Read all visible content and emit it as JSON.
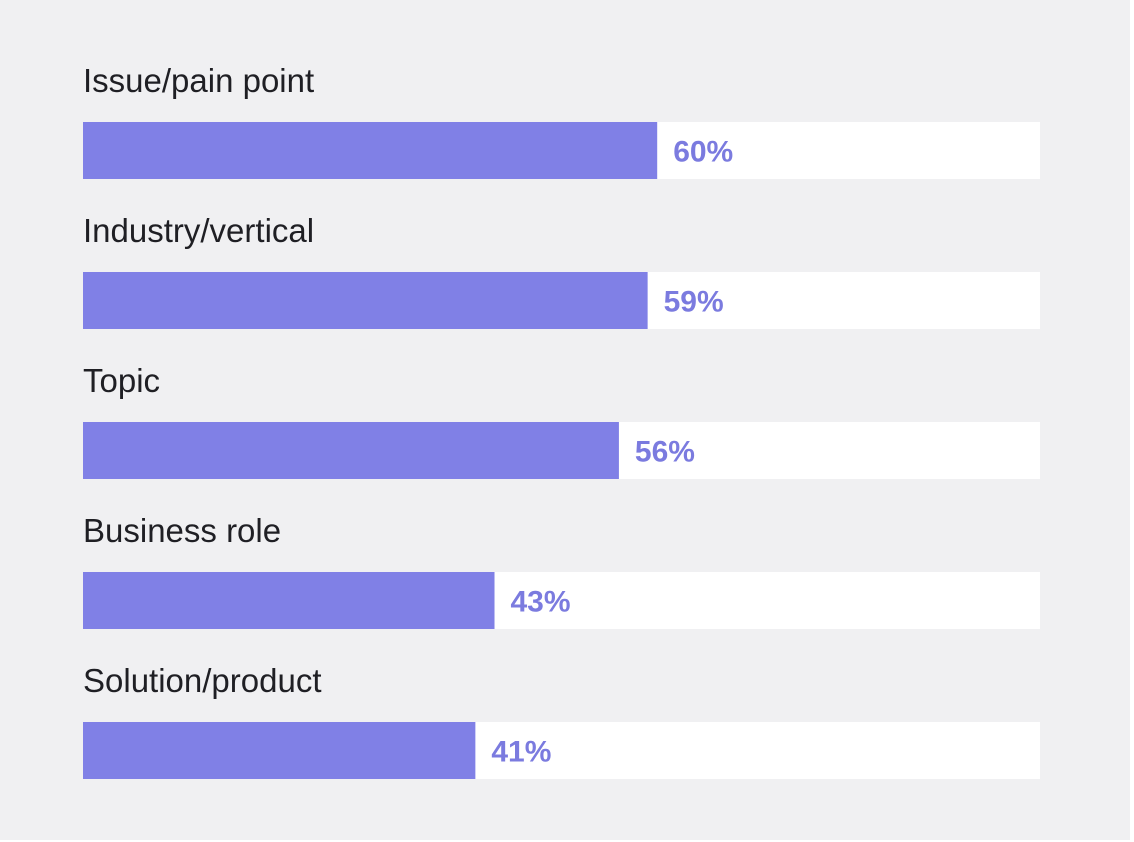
{
  "chart_data": {
    "type": "bar",
    "orientation": "horizontal",
    "categories": [
      "Issue/pain point",
      "Industry/vertical",
      "Topic",
      "Business role",
      "Solution/product"
    ],
    "values": [
      60,
      59,
      56,
      43,
      41
    ],
    "value_labels": [
      "60%",
      "59%",
      "56%",
      "43%",
      "41%"
    ],
    "xlim": [
      0,
      100
    ],
    "grid": false,
    "legend": "none",
    "colors": {
      "bar": "#8080e6",
      "track": "#ffffff",
      "value_text": "#7b7bdf",
      "label_text": "#1f1f24",
      "background": "#f0f0f2"
    }
  }
}
